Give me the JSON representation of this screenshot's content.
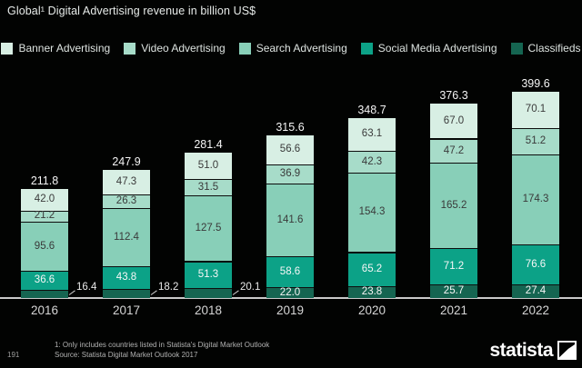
{
  "title": "Global¹ Digital Advertising revenue in billion US$",
  "chart_data": {
    "type": "bar",
    "stacked": true,
    "title": "Global¹ Digital Advertising revenue in billion US$",
    "categories": [
      "2016",
      "2017",
      "2018",
      "2019",
      "2020",
      "2021",
      "2022"
    ],
    "series": [
      {
        "name": "Banner Advertising",
        "color": "#d8efe4",
        "label_color": "#3a3a3a",
        "values": [
          42.0,
          47.3,
          51.0,
          56.6,
          63.1,
          67.0,
          70.1
        ]
      },
      {
        "name": "Video Advertising",
        "color": "#a7dcc9",
        "label_color": "#3a3a3a",
        "values": [
          21.2,
          26.3,
          31.5,
          36.9,
          42.3,
          47.2,
          51.2
        ]
      },
      {
        "name": "Search Advertising",
        "color": "#88cfb8",
        "label_color": "#3a3a3a",
        "values": [
          95.6,
          112.4,
          127.5,
          141.6,
          154.3,
          165.2,
          174.3
        ]
      },
      {
        "name": "Social Media Advertising",
        "color": "#0ca287",
        "label_color": "#f7f7f7",
        "values": [
          36.6,
          43.8,
          51.3,
          58.6,
          65.2,
          71.2,
          76.6
        ]
      },
      {
        "name": "Classifieds",
        "color": "#156551",
        "label_color": "#f7f7f7",
        "values": [
          16.4,
          18.2,
          20.1,
          22.0,
          23.8,
          25.7,
          27.4
        ]
      }
    ],
    "totals": [
      211.8,
      247.9,
      281.4,
      315.6,
      348.7,
      376.3,
      399.6
    ],
    "legend_position": "top-center",
    "value_label_decimals": 1,
    "grid": false,
    "background": "black"
  },
  "footer": {
    "page_number": "191",
    "footnote1": "1: Only includes countries listed in Statista's Digital Market Outlook",
    "footnote2": "Source: Statista Digital Market Outlook 2017",
    "brand": "statista"
  }
}
